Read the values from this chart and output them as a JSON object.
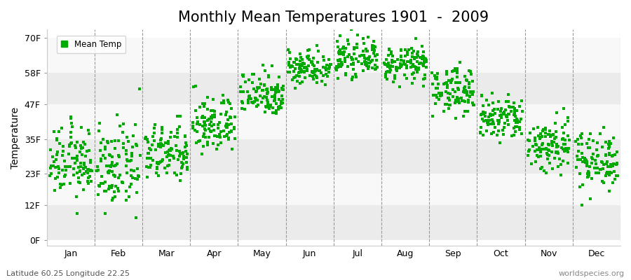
{
  "title": "Monthly Mean Temperatures 1901  -  2009",
  "ylabel": "Temperature",
  "xlabel_months": [
    "Jan",
    "Feb",
    "Mar",
    "Apr",
    "May",
    "Jun",
    "Jul",
    "Aug",
    "Sep",
    "Oct",
    "Nov",
    "Dec"
  ],
  "yticks": [
    0,
    12,
    23,
    35,
    47,
    58,
    70
  ],
  "ytick_labels": [
    "0F",
    "12F",
    "23F",
    "35F",
    "47F",
    "58F",
    "70F"
  ],
  "ylim": [
    -2,
    73
  ],
  "dot_color": "#00AA00",
  "dot_size": 5,
  "legend_label": "Mean Temp",
  "footer_left": "Latitude 60.25 Longitude 22.25",
  "footer_right": "worldspecies.org",
  "fig_bg_color": "#ffffff",
  "plot_bg_color": "#ffffff",
  "band_colors": [
    "#ebebeb",
    "#f8f8f8"
  ],
  "monthly_mean_F": [
    27,
    25,
    30,
    40,
    51,
    60,
    63,
    61,
    52,
    42,
    33,
    28
  ],
  "monthly_std_F": [
    6,
    7,
    5,
    5,
    4,
    3,
    3,
    3,
    4,
    4,
    5,
    5
  ],
  "n_years": 109,
  "title_fontsize": 15,
  "axis_label_fontsize": 10,
  "tick_fontsize": 9,
  "footer_fontsize": 8
}
